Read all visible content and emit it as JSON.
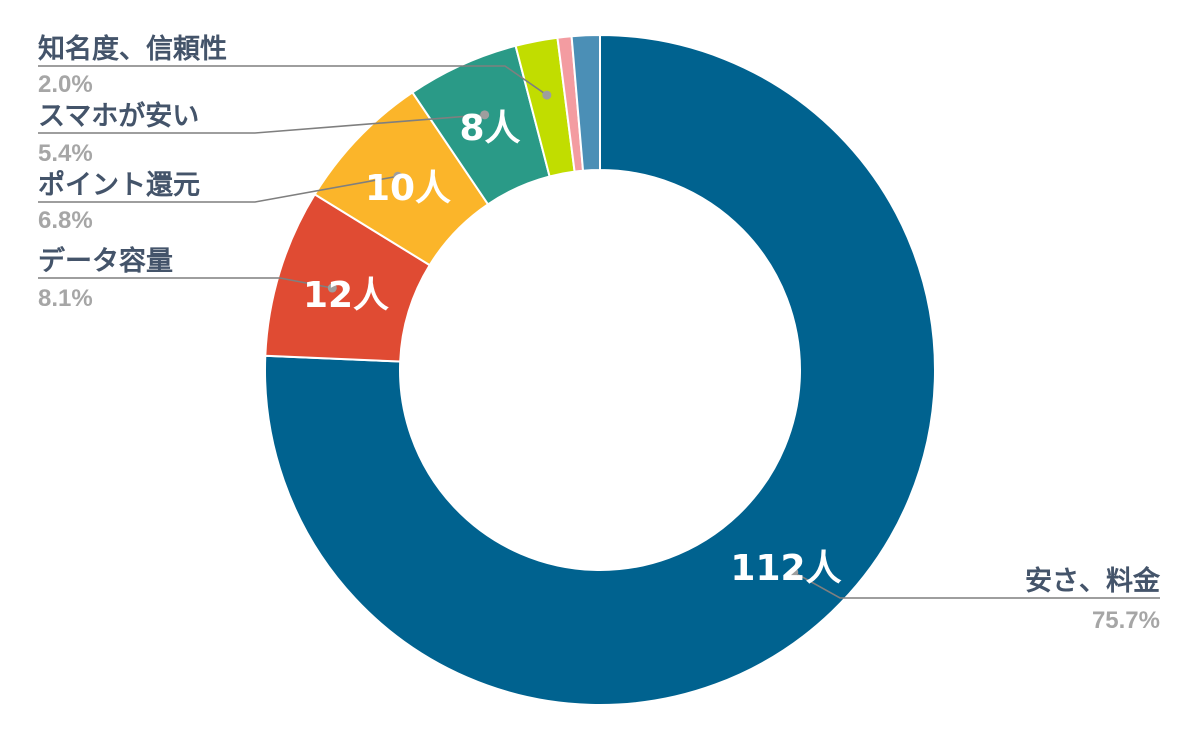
{
  "chart_data": {
    "type": "pie",
    "donut": true,
    "start_angle_deg": 0,
    "direction": "clockwise",
    "slices": [
      {
        "name": "安さ、料金",
        "value": 112,
        "data_label": "112人",
        "percent_label": "75.7%",
        "color": "#00628f"
      },
      {
        "name": "データ容量",
        "value": 12,
        "data_label": "12人",
        "percent_label": "8.1%",
        "color": "#e04b33"
      },
      {
        "name": "ポイント還元",
        "value": 10,
        "data_label": "10人",
        "percent_label": "6.8%",
        "color": "#fbb52a"
      },
      {
        "name": "スマホが安い",
        "value": 8,
        "data_label": "8人",
        "percent_label": "5.4%",
        "color": "#2a9a87"
      },
      {
        "name": "知名度、信頼性",
        "value": 3,
        "data_label": "",
        "percent_label": "2.0%",
        "color": "#c1dd00"
      },
      {
        "name": "",
        "value": 1,
        "data_label": "",
        "percent_label": "",
        "color": "#f39ca1"
      },
      {
        "name": "",
        "value": 2,
        "data_label": "",
        "percent_label": "",
        "color": "#4b8fb6"
      }
    ]
  }
}
